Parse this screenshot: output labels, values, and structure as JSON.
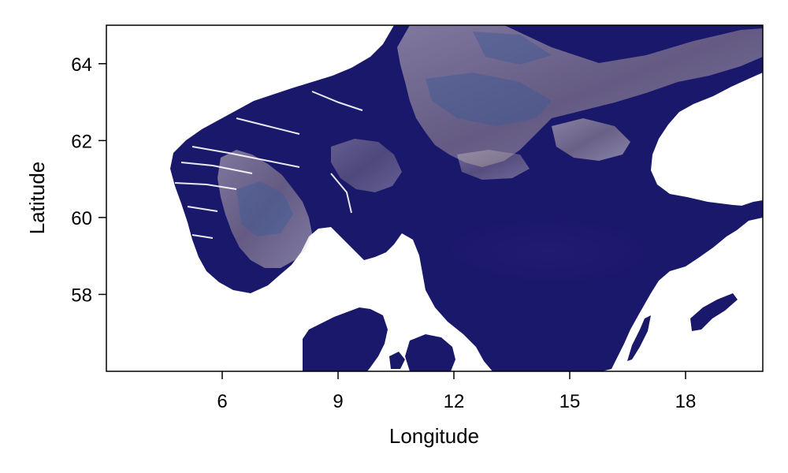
{
  "map": {
    "xlabel": "Longitude",
    "ylabel": "Latitude",
    "x_ticks": [
      "6",
      "9",
      "12",
      "15",
      "18"
    ],
    "y_ticks": [
      "58",
      "60",
      "62",
      "64"
    ],
    "xlim": [
      3,
      20
    ],
    "ylim": [
      56,
      65
    ],
    "colors": {
      "lowland": "#1a186b",
      "mid": "#3c5a96",
      "highland": "#ead9c6",
      "peak": "#fbf4ee",
      "water": "#ffffff"
    }
  }
}
